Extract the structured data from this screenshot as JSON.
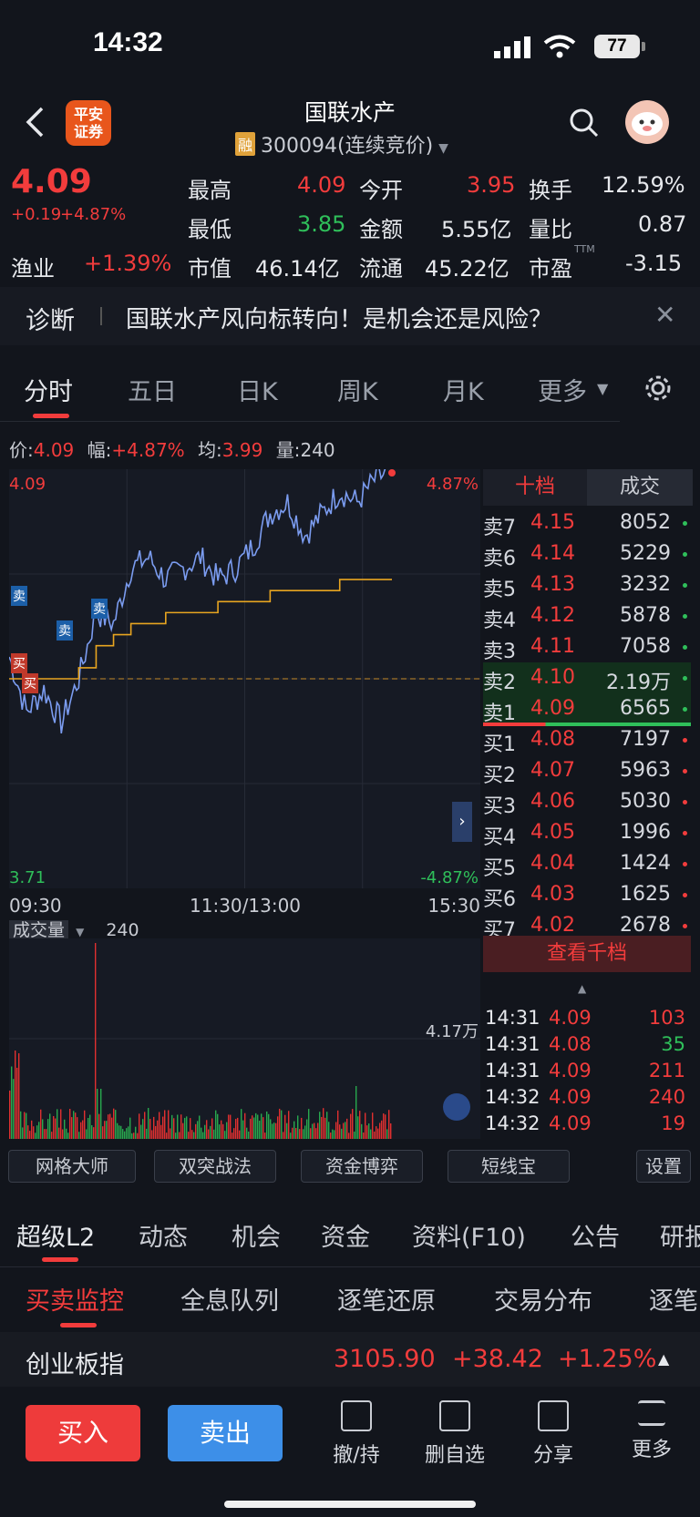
{
  "status": {
    "time": "14:32",
    "battery": "77"
  },
  "header": {
    "title": "国联水产",
    "rong": "融",
    "code": "300094(连续竞价)",
    "logo": "平安证券"
  },
  "quote": {
    "price": "4.09",
    "change": "+0.19",
    "pct": "+4.87%",
    "sector": "渔业",
    "sector_pct": "+1.39%",
    "high_l": "最高",
    "high": "4.09",
    "low_l": "最低",
    "low": "3.85",
    "mcap_l": "市值",
    "mcap": "46.14亿",
    "open_l": "今开",
    "open": "3.95",
    "amount_l": "金额",
    "amount": "5.55亿",
    "float_l": "流通",
    "float": "45.22亿",
    "turn_l": "换手",
    "turn": "12.59%",
    "vr_l": "量比",
    "vr": "0.87",
    "pe_l": "市盈",
    "pe_sup": "TTM",
    "pe": "-3.15"
  },
  "diagnosis": {
    "label": "诊断",
    "text": "国联水产风向标转向！是机会还是风险？"
  },
  "tabs": [
    "分时",
    "五日",
    "日K",
    "周K",
    "月K",
    "更多"
  ],
  "info": {
    "price_l": "价:",
    "price": "4.09",
    "amp_l": "幅:",
    "amp": "+4.87%",
    "avg_l": "均:",
    "avg": "3.99",
    "vol_l": "量:",
    "vol": "240"
  },
  "chart": {
    "top_left": "4.09",
    "top_right": "4.87%",
    "bottom_left": "3.71",
    "bottom_right": "-4.87%",
    "t1": "09:30",
    "t2": "11:30/13:00",
    "t3": "15:30",
    "vol_label": "成交量",
    "vol_value": "240",
    "vol_max": "4.17万",
    "marks": [
      "卖",
      "卖",
      "卖",
      "买",
      "买"
    ]
  },
  "chart_data": {
    "type": "line",
    "series": [
      {
        "name": "价",
        "values": [
          3.92,
          3.87,
          3.89,
          3.86,
          3.9,
          3.96,
          3.95,
          4.0,
          4.01,
          3.99,
          4.0,
          4.01,
          3.99,
          4.0,
          4.02,
          4.05,
          4.06,
          4.03,
          4.05,
          4.07,
          4.06,
          4.08,
          4.09
        ]
      },
      {
        "name": "均",
        "values": [
          3.9,
          3.9,
          3.9,
          3.9,
          3.91,
          3.93,
          3.94,
          3.95,
          3.95,
          3.96,
          3.96,
          3.96,
          3.97,
          3.97,
          3.97,
          3.98,
          3.98,
          3.98,
          3.98,
          3.99,
          3.99,
          3.99,
          3.99
        ]
      }
    ],
    "ylim": [
      3.71,
      4.09
    ]
  },
  "orderbook": {
    "tab1": "十档",
    "tab2": "成交",
    "asks": [
      {
        "l": "卖7",
        "p": "4.15",
        "v": "8052"
      },
      {
        "l": "卖6",
        "p": "4.14",
        "v": "5229"
      },
      {
        "l": "卖5",
        "p": "4.13",
        "v": "3232"
      },
      {
        "l": "卖4",
        "p": "4.12",
        "v": "5878"
      },
      {
        "l": "卖3",
        "p": "4.11",
        "v": "7058"
      },
      {
        "l": "卖2",
        "p": "4.10",
        "v": "2.19万"
      },
      {
        "l": "卖1",
        "p": "4.09",
        "v": "6565"
      }
    ],
    "bids": [
      {
        "l": "买1",
        "p": "4.08",
        "v": "7197"
      },
      {
        "l": "买2",
        "p": "4.07",
        "v": "5963"
      },
      {
        "l": "买3",
        "p": "4.06",
        "v": "5030"
      },
      {
        "l": "买4",
        "p": "4.05",
        "v": "1996"
      },
      {
        "l": "买5",
        "p": "4.04",
        "v": "1424"
      },
      {
        "l": "买6",
        "p": "4.03",
        "v": "1625"
      },
      {
        "l": "买7",
        "p": "4.02",
        "v": "2678"
      }
    ],
    "more": "查看千档",
    "ticks": [
      {
        "t": "14:31",
        "p": "4.09",
        "v": "103"
      },
      {
        "t": "14:31",
        "p": "4.08",
        "v": "35"
      },
      {
        "t": "14:31",
        "p": "4.09",
        "v": "211"
      },
      {
        "t": "14:32",
        "p": "4.09",
        "v": "240"
      },
      {
        "t": "14:32",
        "p": "4.09",
        "v": "19"
      }
    ]
  },
  "tools": [
    "网格大师",
    "双突战法",
    "资金博弈",
    "短线宝",
    "设置"
  ],
  "sections": [
    "超级L2",
    "动态",
    "机会",
    "资金",
    "资料(F10)",
    "公告",
    "研报"
  ],
  "subsections": [
    "买卖监控",
    "全息队列",
    "逐笔还原",
    "交易分布",
    "逐笔"
  ],
  "index": {
    "name": "创业板指",
    "value": "3105.90",
    "change": "+38.42",
    "pct": "+1.25%"
  },
  "bottom": {
    "buy": "买入",
    "sell": "卖出",
    "undo": "撤/持",
    "del": "删自选",
    "share": "分享",
    "more": "更多"
  },
  "colors": {
    "up": "#f23c3c",
    "down": "#2fbf5a",
    "price_line": "#7b9cf0",
    "avg_line": "#e8a520"
  }
}
